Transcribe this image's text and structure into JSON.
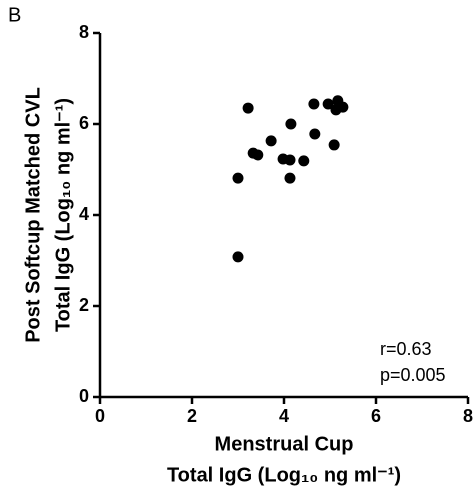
{
  "chart_data": {
    "type": "scatter",
    "panel_label": "B",
    "x_label": [
      "Menstrual Cup",
      "Total IgG (Log₁₀ ng ml⁻¹)"
    ],
    "y_label": [
      "Post Softcup Matched CVL",
      "Total IgG (Log₁₀ ng ml⁻¹)"
    ],
    "annotations": [
      "r=0.63",
      "p=0.005"
    ],
    "x": [
      3.22,
      3.0,
      3.0,
      3.33,
      3.43,
      3.72,
      3.98,
      4.13,
      4.13,
      4.15,
      4.43,
      4.65,
      4.67,
      4.96,
      5.09,
      5.13,
      5.17,
      5.28
    ],
    "y": [
      6.35,
      4.81,
      3.08,
      5.36,
      5.32,
      5.63,
      5.23,
      5.21,
      4.81,
      6.0,
      5.19,
      6.44,
      5.78,
      6.44,
      5.54,
      6.31,
      6.51,
      6.37
    ],
    "color": "#000000",
    "xlim": [
      0,
      8
    ],
    "ylim": [
      0,
      8
    ],
    "xticks": [
      0,
      2,
      4,
      6,
      8
    ],
    "yticks": [
      0,
      2,
      4,
      6,
      8
    ],
    "grid": false
  }
}
